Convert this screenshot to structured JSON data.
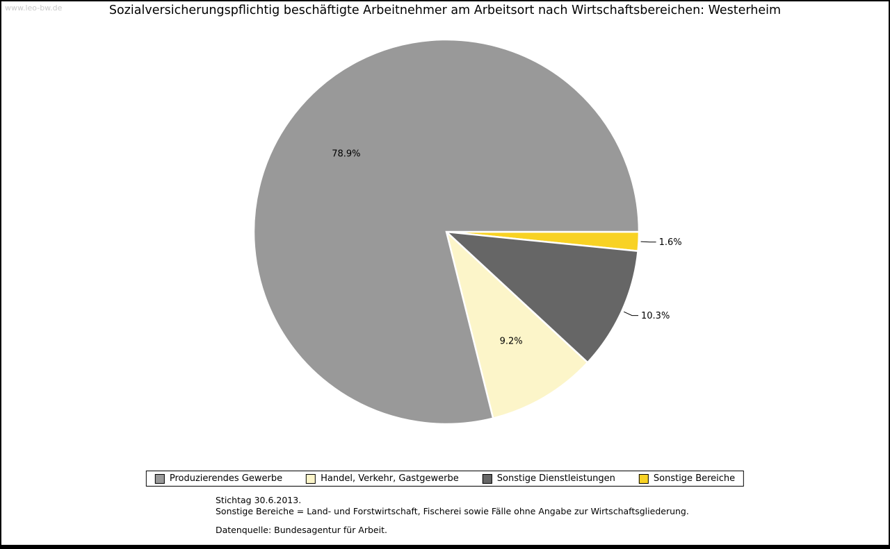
{
  "page": {
    "watermark": "www.leo-bw.de"
  },
  "chart_data": {
    "type": "pie",
    "title": "Sozialversicherungspflichtig beschäftigte Arbeitnehmer am Arbeitsort nach Wirtschaftsbereichen: Westerheim",
    "unit": "%",
    "start_angle_deg": 0,
    "direction": "clockwise",
    "legend_position": "bottom",
    "slices": [
      {
        "label": "Produzierendes Gewerbe",
        "value": 78.9,
        "display": "78.9%",
        "color": "#999999",
        "label_inside": true
      },
      {
        "label": "Handel, Verkehr, Gastgewerbe",
        "value": 9.2,
        "display": "9.2%",
        "color": "#FCF5C9",
        "label_inside": true
      },
      {
        "label": "Sonstige Dienstleistungen",
        "value": 10.3,
        "display": "10.3%",
        "color": "#666666",
        "label_inside": false
      },
      {
        "label": "Sonstige Bereiche",
        "value": 1.6,
        "display": "1.6%",
        "color": "#F8D224",
        "label_inside": false
      }
    ]
  },
  "notes": {
    "line1": "Stichtag 30.6.2013.",
    "line2": "Sonstige Bereiche = Land- und Forstwirtschaft, Fischerei sowie Fälle ohne Angabe zur Wirtschaftsgliederung.",
    "source": "Datenquelle: Bundesagentur für Arbeit."
  }
}
